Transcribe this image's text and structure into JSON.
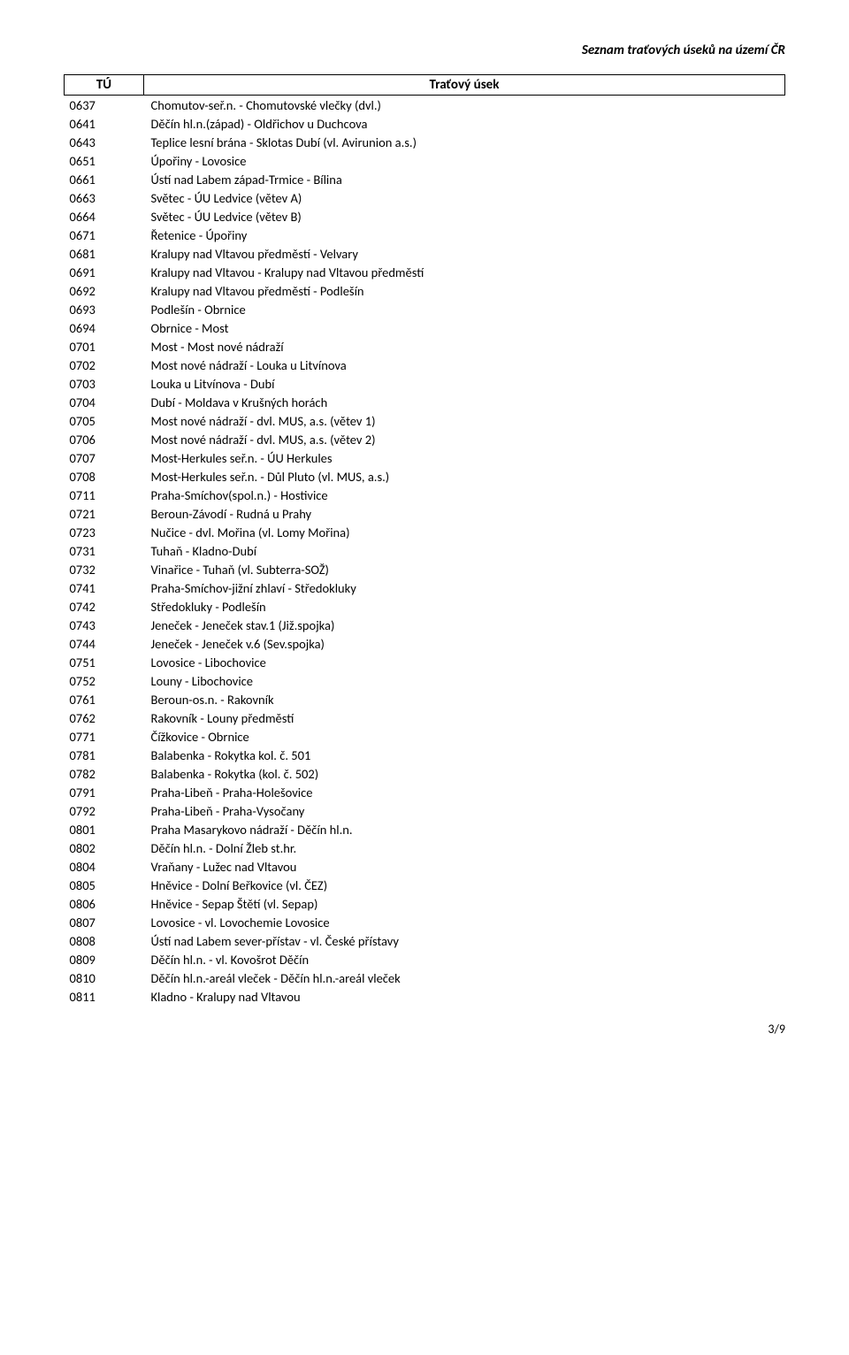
{
  "header": {
    "title": "Seznam traťových úseků na území ČR"
  },
  "table": {
    "headers": {
      "code": "TÚ",
      "desc": "Traťový úsek"
    },
    "rows": [
      {
        "code": "0637",
        "desc": "Chomutov-seř.n. - Chomutovské vlečky (dvl.)"
      },
      {
        "code": "0641",
        "desc": "Děčín hl.n.(západ) - Oldřichov u Duchcova"
      },
      {
        "code": "0643",
        "desc": "Teplice lesní brána - Sklotas Dubí (vl. Avirunion a.s.)"
      },
      {
        "code": "0651",
        "desc": "Úpořiny - Lovosice"
      },
      {
        "code": "0661",
        "desc": "Ústí nad Labem západ-Trmice - Bílina"
      },
      {
        "code": "0663",
        "desc": "Světec - ÚU Ledvice (větev A)"
      },
      {
        "code": "0664",
        "desc": "Světec - ÚU Ledvice (větev B)"
      },
      {
        "code": "0671",
        "desc": "Řetenice - Úpořiny"
      },
      {
        "code": "0681",
        "desc": "Kralupy nad Vltavou předměstí - Velvary"
      },
      {
        "code": "0691",
        "desc": "Kralupy nad Vltavou - Kralupy nad Vltavou předměstí"
      },
      {
        "code": "0692",
        "desc": "Kralupy nad Vltavou předměstí - Podlešín"
      },
      {
        "code": "0693",
        "desc": "Podlešín - Obrnice"
      },
      {
        "code": "0694",
        "desc": "Obrnice - Most"
      },
      {
        "code": "0701",
        "desc": "Most - Most nové nádraží"
      },
      {
        "code": "0702",
        "desc": "Most nové nádraží - Louka u Litvínova"
      },
      {
        "code": "0703",
        "desc": "Louka u Litvínova - Dubí"
      },
      {
        "code": "0704",
        "desc": "Dubí - Moldava v Krušných horách"
      },
      {
        "code": "0705",
        "desc": "Most nové nádraží - dvl. MUS, a.s. (větev 1)"
      },
      {
        "code": "0706",
        "desc": "Most nové nádraží - dvl. MUS, a.s. (větev 2)"
      },
      {
        "code": "0707",
        "desc": "Most-Herkules seř.n. - ÚU Herkules"
      },
      {
        "code": "0708",
        "desc": "Most-Herkules seř.n. - Důl Pluto (vl. MUS, a.s.)"
      },
      {
        "code": "0711",
        "desc": "Praha-Smíchov(spol.n.) - Hostivice"
      },
      {
        "code": "0721",
        "desc": "Beroun-Závodí - Rudná u Prahy"
      },
      {
        "code": "0723",
        "desc": "Nučice - dvl. Mořina (vl. Lomy Mořina)"
      },
      {
        "code": "0731",
        "desc": "Tuhaň - Kladno-Dubí"
      },
      {
        "code": "0732",
        "desc": "Vinařice - Tuhaň (vl. Subterra-SOŽ)"
      },
      {
        "code": "0741",
        "desc": "Praha-Smíchov-jižní zhlaví - Středokluky"
      },
      {
        "code": "0742",
        "desc": "Středokluky - Podlešín"
      },
      {
        "code": "0743",
        "desc": "Jeneček - Jeneček stav.1 (Již.spojka)"
      },
      {
        "code": "0744",
        "desc": "Jeneček - Jeneček v.6 (Sev.spojka)"
      },
      {
        "code": "0751",
        "desc": "Lovosice - Libochovice"
      },
      {
        "code": "0752",
        "desc": "Louny - Libochovice"
      },
      {
        "code": "0761",
        "desc": "Beroun-os.n. - Rakovník"
      },
      {
        "code": "0762",
        "desc": "Rakovník - Louny předměstí"
      },
      {
        "code": "0771",
        "desc": "Čížkovice - Obrnice"
      },
      {
        "code": "0781",
        "desc": "Balabenka - Rokytka kol. č. 501"
      },
      {
        "code": "0782",
        "desc": "Balabenka - Rokytka (kol. č. 502)"
      },
      {
        "code": "0791",
        "desc": "Praha-Libeň - Praha-Holešovice"
      },
      {
        "code": "0792",
        "desc": "Praha-Libeň - Praha-Vysočany"
      },
      {
        "code": "0801",
        "desc": "Praha Masarykovo nádraží - Děčín hl.n."
      },
      {
        "code": "0802",
        "desc": "Děčín hl.n. - Dolní Žleb st.hr."
      },
      {
        "code": "0804",
        "desc": "Vraňany - Lužec nad Vltavou"
      },
      {
        "code": "0805",
        "desc": "Hněvice - Dolní Beřkovice (vl. ČEZ)"
      },
      {
        "code": "0806",
        "desc": "Hněvice - Sepap Štětí (vl. Sepap)"
      },
      {
        "code": "0807",
        "desc": "Lovosice - vl. Lovochemie Lovosice"
      },
      {
        "code": "0808",
        "desc": "Ústí nad Labem sever-přístav - vl. České přístavy"
      },
      {
        "code": "0809",
        "desc": "Děčín hl.n. - vl. Kovošrot Děčín"
      },
      {
        "code": "0810",
        "desc": "Děčín hl.n.-areál vleček - Děčín hl.n.-areál vleček"
      },
      {
        "code": "0811",
        "desc": "Kladno - Kralupy nad Vltavou"
      }
    ]
  },
  "footer": {
    "page": "3/9"
  }
}
